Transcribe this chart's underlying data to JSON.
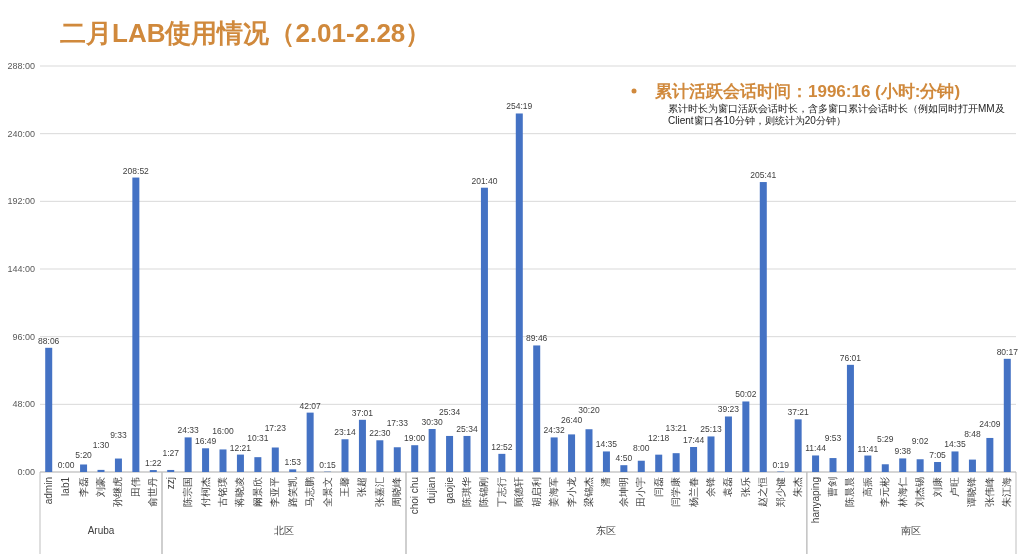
{
  "chart_data": {
    "type": "bar",
    "title": "二月LAB使用情况（2.01-2.28）",
    "subtitle": "累计活跃会话时间：1996:16 (小时:分钟)",
    "annotations": [
      "累计时长为窗口活跃会话时长，含多窗口累计会话时长（例如同时打开MM及Client窗口各10分钟，则统计为20分钟）",
      "Aruba",
      "北区",
      "东区",
      "南区"
    ],
    "categories": [
      "admin",
      "lab1",
      "李磊",
      "刘豪",
      "孙继虎",
      "田伟",
      "俞世丹",
      "zzj",
      "陈宗国",
      "付柯杰",
      "古铭璞",
      "蒋晓凌",
      "阚景欣",
      "李亚平",
      "路笑凯",
      "马志鹏",
      "全景文",
      "王馨",
      "张超",
      "张嘉汇",
      "周晓峰",
      "choi chu",
      "dujian",
      "gaojie",
      "陈琪华",
      "陈锦刚",
      "丁志行",
      "顾德轩",
      "胡启利",
      "姜海军",
      "李小龙",
      "梁锦杰",
      "潘",
      "佘坤明",
      "田小宇",
      "闫磊",
      "闫学康",
      "杨兰春",
      "余锋",
      "袁磊",
      "张乐",
      "赵之恒",
      "郑少健",
      "朱杰",
      "hanyaping",
      "曹剑",
      "陈晨晨",
      "高振",
      "李元彬",
      "林海仁",
      "刘杰锡",
      "刘康",
      "卢旺",
      "谭晓锋",
      "张伟峰",
      "朱江海"
    ],
    "values": [
      88.1,
      0,
      5.33,
      1.5,
      9.55,
      208.87,
      1.37,
      1.45,
      24.55,
      16.82,
      16,
      12.35,
      10.52,
      17.38,
      1.88,
      42.12,
      0.25,
      23.23,
      37.02,
      22.5,
      17.55,
      19,
      30.5,
      25.57,
      25.57,
      201.67,
      12.87,
      254.32,
      89.77,
      24.53,
      26.67,
      30.33,
      14.58,
      4.83,
      8,
      12.3,
      13.35,
      17.73,
      25.22,
      39.38,
      50.03,
      205.68,
      0.32,
      37.35,
      11.73,
      9.88,
      76.02,
      11.68,
      5.48,
      9.63,
      9.03,
      7.08,
      14.58,
      8.8,
      24.15,
      80.28
    ],
    "value_labels": [
      "88:06",
      "0:00",
      "5:20",
      "1:30",
      "9:33",
      "208:52",
      "1:22",
      "1:27",
      "24:33",
      "16:49",
      "16:00",
      "12:21",
      "10:31",
      "17:23",
      "1:53",
      "42:07",
      "0:15",
      "23:14",
      "37:01",
      "22:30",
      "17:33",
      "19:00",
      "30:30",
      "25:34",
      "25:34",
      "201:40",
      "12:52",
      "254:19",
      "89:46",
      "24:32",
      "26:40",
      "30:20",
      "14:35",
      "4:50",
      "8:00",
      "12:18",
      "13:21",
      "17:44",
      "25:13",
      "39:23",
      "50:02",
      "205:41",
      "0:19",
      "37:21",
      "11:44",
      "9:53",
      "76:01",
      "11:41",
      "5:29",
      "9:38",
      "9:02",
      "7:05",
      "14:35",
      "8:48",
      "24:09",
      "80:17"
    ],
    "color": "#4472c4",
    "ylim": [
      0,
      288
    ],
    "yticks": [
      {
        "value": 0,
        "label": "0:00"
      },
      {
        "value": 48,
        "label": "48:00"
      },
      {
        "value": 96,
        "label": "96:00"
      },
      {
        "value": 144,
        "label": "144:00"
      },
      {
        "value": 192,
        "label": "192:00"
      },
      {
        "value": 240,
        "label": "240:00"
      },
      {
        "value": 288,
        "label": "288:00"
      }
    ],
    "grid": "y"
  }
}
